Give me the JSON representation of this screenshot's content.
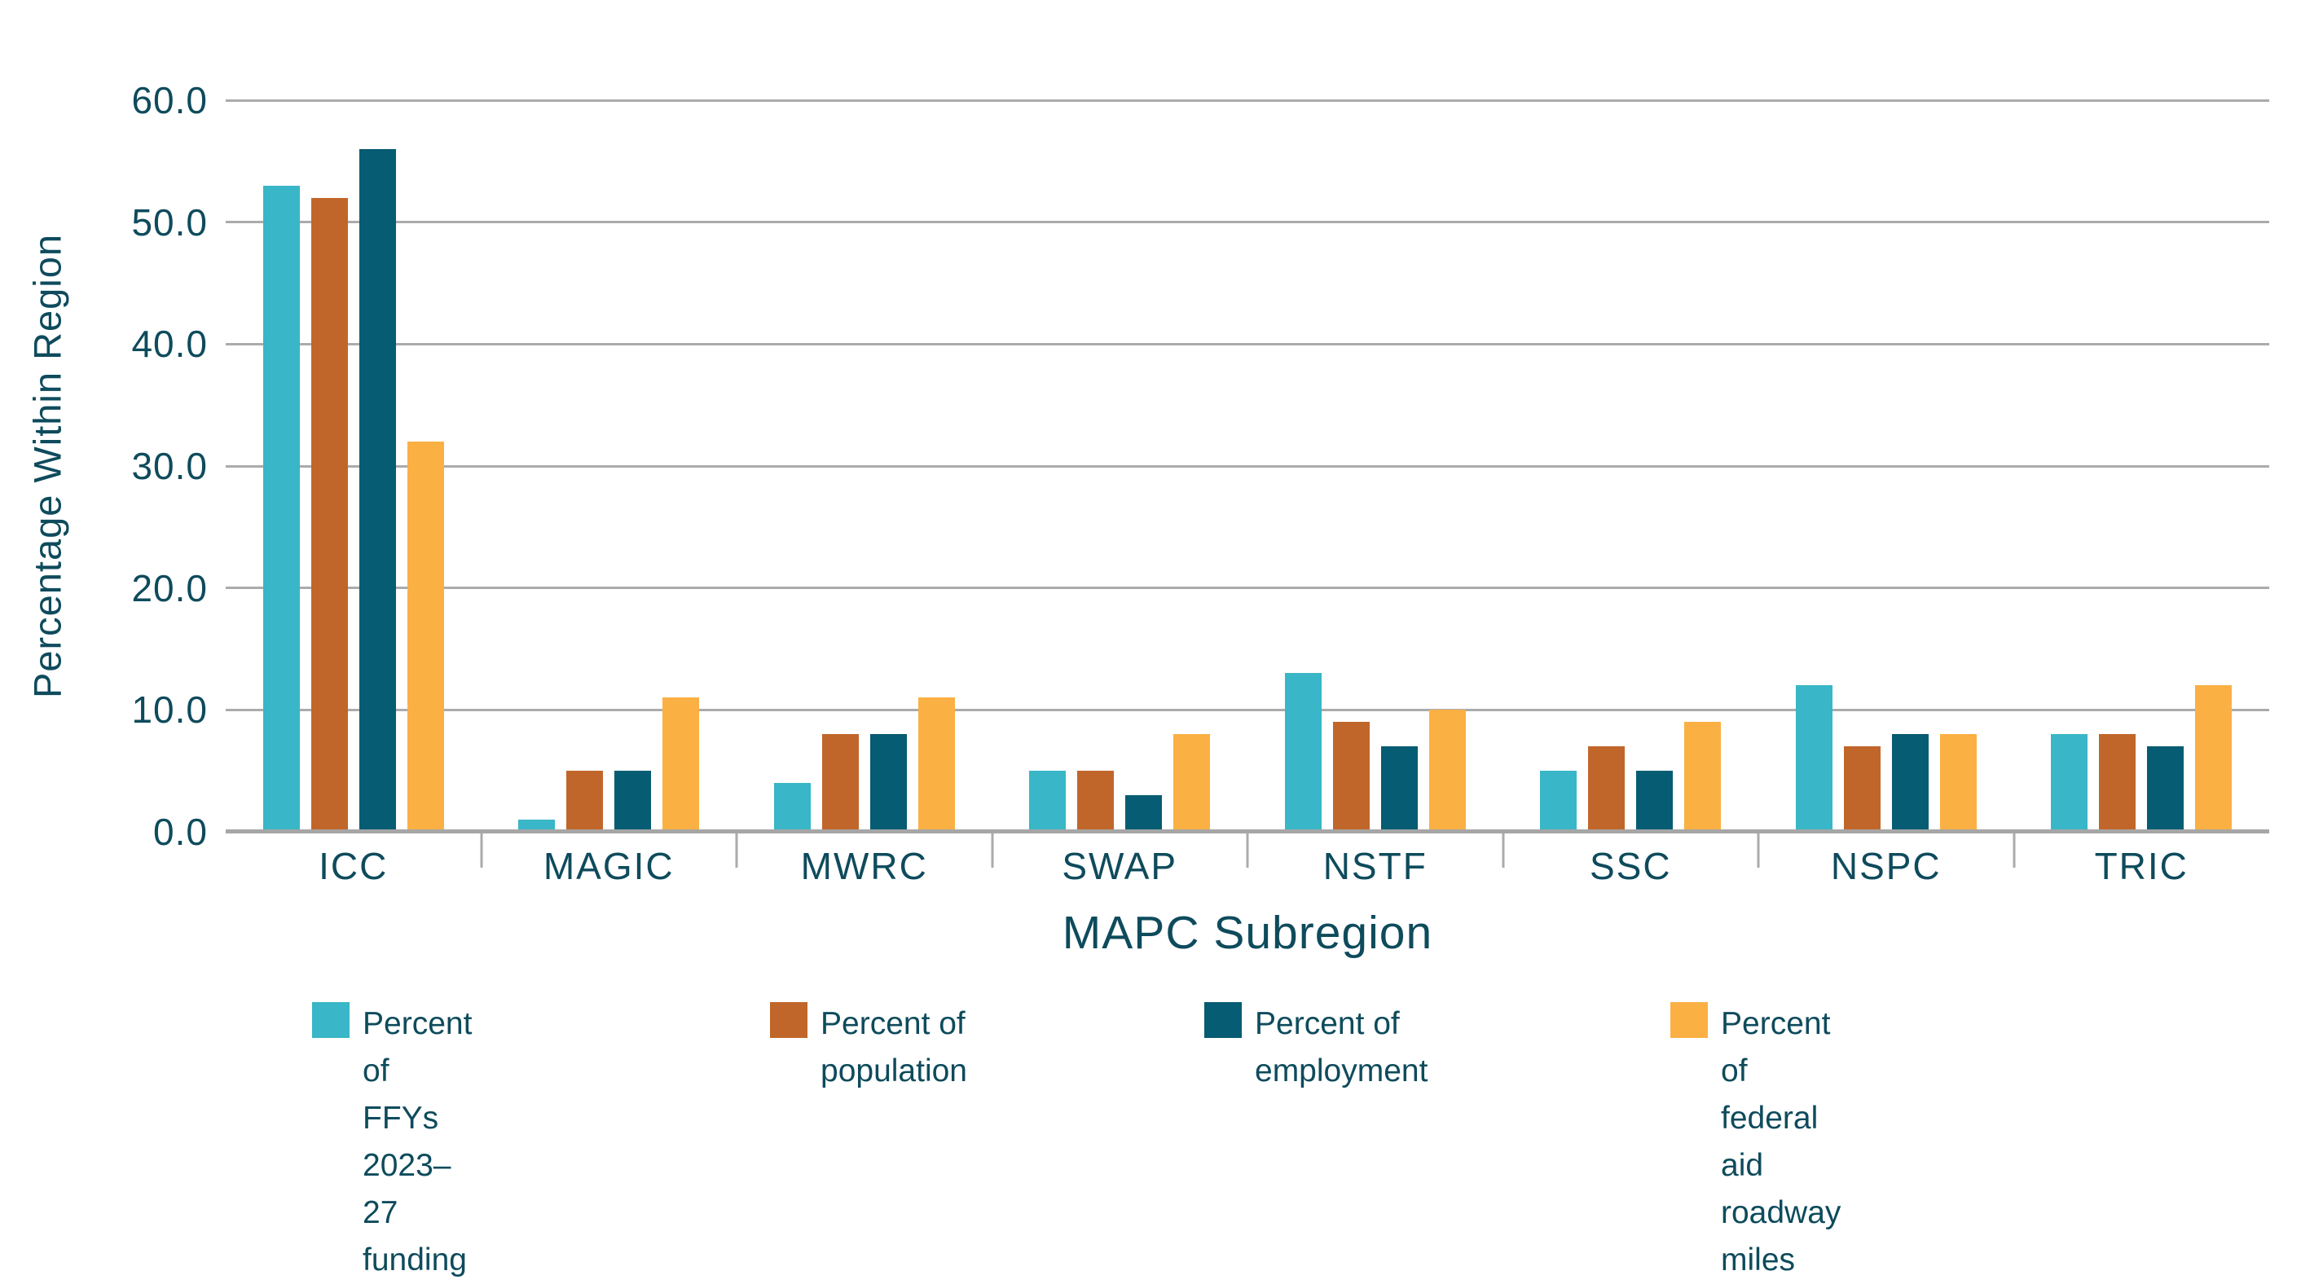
{
  "chart_data": {
    "type": "bar",
    "title": "",
    "xlabel": "MAPC Subregion",
    "ylabel": "Percentage Within Region",
    "ylim": [
      0,
      60
    ],
    "ytick_step": 10,
    "ytick_decimals": 1,
    "grid": "horizontal",
    "legend_position": "bottom",
    "categories": [
      "ICC",
      "MAGIC",
      "MWRC",
      "SWAP",
      "NSTF",
      "SSC",
      "NSPC",
      "TRIC"
    ],
    "series": [
      {
        "name": "Percent of FFYs 2023–27 funding",
        "color": "#39B6C7",
        "values": [
          53,
          1,
          4,
          5,
          13,
          5,
          12,
          8
        ]
      },
      {
        "name": "Percent of population",
        "color": "#C1662A",
        "values": [
          52,
          5,
          8,
          5,
          9,
          7,
          7,
          8
        ]
      },
      {
        "name": "Percent of employment",
        "color": "#065C72",
        "values": [
          56,
          5,
          8,
          3,
          7,
          5,
          8,
          7
        ]
      },
      {
        "name": "Percent of federal aid roadway miles",
        "color": "#FBB044",
        "values": [
          32,
          11,
          11,
          8,
          10,
          9,
          8,
          12
        ]
      }
    ],
    "colors": {
      "text": "#0E4B5C",
      "gridline": "#ABABAB",
      "axis_line": "#A6A6A6"
    }
  }
}
